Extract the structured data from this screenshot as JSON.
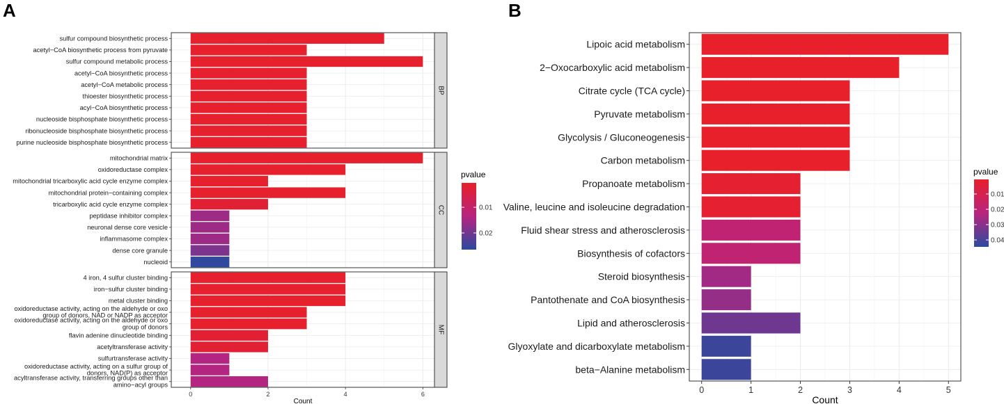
{
  "panel_a_label": "A",
  "panel_b_label": "B",
  "chart_data": [
    {
      "type": "bar",
      "orientation": "horizontal",
      "panel": "A",
      "xlabel": "Count",
      "xlim": [
        -0.5,
        6.3
      ],
      "xticks": [
        0,
        2,
        4,
        6
      ],
      "color_scale": {
        "title": "pvalue",
        "ticks": [
          "0.01",
          "0.02"
        ],
        "low_color": "#e8202a",
        "high_color": "#2b4a9f",
        "range": [
          0.0005,
          0.0265
        ]
      },
      "facets": [
        {
          "name": "BP",
          "categories": [
            [
              "sulfur compound biosynthetic process"
            ],
            [
              "acetyl−CoA biosynthetic process from pyruvate"
            ],
            [
              "sulfur compound metabolic process"
            ],
            [
              "acetyl−CoA biosynthetic process"
            ],
            [
              "acetyl−CoA metabolic process"
            ],
            [
              "thioester biosynthetic process"
            ],
            [
              "acyl−CoA biosynthetic process"
            ],
            [
              "nucleoside bisphosphate biosynthetic process"
            ],
            [
              "ribonucleoside bisphosphate biosynthetic process"
            ],
            [
              "purine nucleoside bisphosphate biosynthetic process"
            ]
          ],
          "values": [
            5,
            3,
            6,
            3,
            3,
            3,
            3,
            3,
            3,
            3
          ],
          "pvalues": [
            0.001,
            0.001,
            0.001,
            0.001,
            0.001,
            0.001,
            0.001,
            0.001,
            0.001,
            0.001
          ]
        },
        {
          "name": "CC",
          "categories": [
            [
              "mitochondrial matrix"
            ],
            [
              "oxidoreductase complex"
            ],
            [
              "mitochondrial tricarboxylic acid cycle enzyme complex"
            ],
            [
              "mitochondrial protein−containing complex"
            ],
            [
              "tricarboxylic acid cycle enzyme complex"
            ],
            [
              "peptidase inhibitor complex"
            ],
            [
              "neuronal dense core vesicle"
            ],
            [
              "inflammasome complex"
            ],
            [
              "dense core granule"
            ],
            [
              "nucleoid"
            ]
          ],
          "values": [
            6,
            4,
            2,
            4,
            2,
            1,
            1,
            1,
            1,
            1
          ],
          "pvalues": [
            0.001,
            0.001,
            0.001,
            0.001,
            0.002,
            0.016,
            0.016,
            0.016,
            0.019,
            0.026
          ]
        },
        {
          "name": "MF",
          "categories": [
            [
              "4 iron, 4 sulfur cluster binding"
            ],
            [
              "iron−sulfur cluster binding"
            ],
            [
              "metal cluster binding"
            ],
            [
              "oxidoreductase activity, acting on the aldehyde or oxo",
              "group of donors, NAD or NADP as acceptor"
            ],
            [
              "oxidoreductase activity, acting on the aldehyde or oxo",
              "group of donors"
            ],
            [
              "flavin adenine dinucleotide binding"
            ],
            [
              "acetyltransferase activity"
            ],
            [
              "sulfurtransferase activity"
            ],
            [
              "oxidoreductase activity, acting on a sulfur group of",
              "donors, NAD(P) as acceptor"
            ],
            [
              "acyltransferase activity, transferring groups other than",
              "amino−acyl groups"
            ]
          ],
          "values": [
            4,
            4,
            4,
            3,
            3,
            2,
            2,
            1,
            1,
            2
          ],
          "pvalues": [
            0.001,
            0.001,
            0.001,
            0.001,
            0.001,
            0.002,
            0.002,
            0.014,
            0.014,
            0.014
          ]
        }
      ]
    },
    {
      "type": "bar",
      "orientation": "horizontal",
      "panel": "B",
      "xlabel": "Count",
      "xlim": [
        -0.25,
        5.25
      ],
      "xticks": [
        0,
        1,
        2,
        3,
        4,
        5
      ],
      "categories": [
        "Lipoic acid metabolism",
        "2−Oxocarboxylic acid metabolism",
        "Citrate cycle (TCA cycle)",
        "Pyruvate metabolism",
        "Glycolysis / Gluconeogenesis",
        "Carbon metabolism",
        "Propanoate metabolism",
        "Valine, leucine and isoleucine degradation",
        "Fluid shear stress and atherosclerosis",
        "Biosynthesis of cofactors",
        "Steroid biosynthesis",
        "Pantothenate and CoA biosynthesis",
        "Lipid and atherosclerosis",
        "Glyoxylate and dicarboxylate metabolism",
        "beta−Alanine metabolism"
      ],
      "values": [
        5,
        4,
        3,
        3,
        3,
        3,
        2,
        2,
        2,
        2,
        1,
        1,
        2,
        1,
        1
      ],
      "pvalues": [
        0.001,
        0.001,
        0.001,
        0.001,
        0.001,
        0.001,
        0.002,
        0.002,
        0.019,
        0.019,
        0.026,
        0.028,
        0.034,
        0.042,
        0.042
      ],
      "color_scale": {
        "title": "pvalue",
        "ticks": [
          "0.01",
          "0.02",
          "0.03",
          "0.04"
        ],
        "low_color": "#e8202a",
        "high_color": "#2b4a9f",
        "range": [
          0.0005,
          0.0445
        ]
      }
    }
  ]
}
